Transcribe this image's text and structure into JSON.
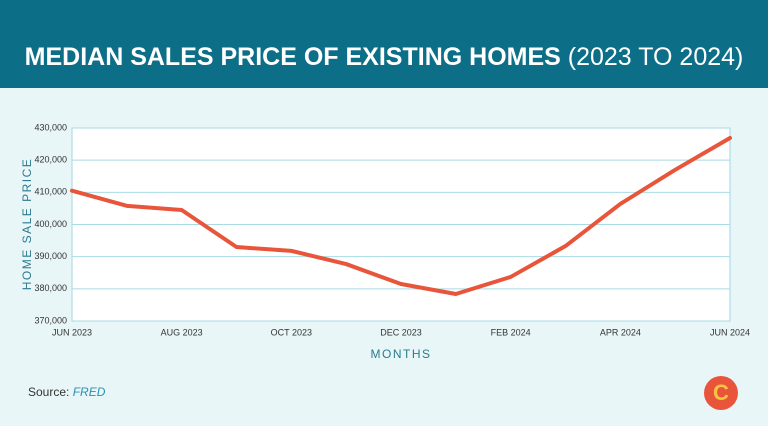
{
  "chart_data": {
    "type": "line",
    "title": "MEDIAN SALES PRICE OF EXISTING HOMES",
    "subtitle": "(2023 TO 2024)",
    "y_label": "HOME SALE PRICE",
    "x_label": "MONTHS",
    "source_label": "Source:",
    "source_name": "FRED",
    "logo": "C",
    "categories": [
      "JUN 2023",
      null,
      "AUG 2023",
      null,
      "OCT 2023",
      null,
      "DEC 2023",
      null,
      "FEB 2024",
      null,
      "APR 2024",
      null,
      "JUN 2024"
    ],
    "series": [
      {
        "name": "Median sales price",
        "color": "#e8553a",
        "values": [
          410500,
          405800,
          404500,
          393000,
          391800,
          387700,
          381500,
          378400,
          383700,
          393300,
          406400,
          417000,
          426900
        ]
      }
    ],
    "ylim": [
      370000,
      430000
    ],
    "yticks": [
      {
        "value": 370000,
        "label": "370,000"
      },
      {
        "value": 380000,
        "label": "380,000"
      },
      {
        "value": 390000,
        "label": "390,000"
      },
      {
        "value": 400000,
        "label": "400,000"
      },
      {
        "value": 410000,
        "label": "410,000"
      },
      {
        "value": 420000,
        "label": "420,000"
      },
      {
        "value": 430000,
        "label": "430,000"
      }
    ],
    "grid": true
  }
}
